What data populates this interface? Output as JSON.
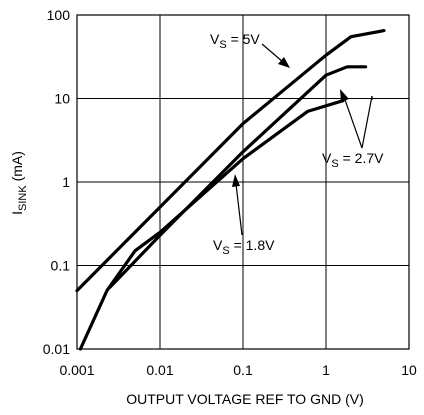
{
  "chart_data": {
    "type": "line",
    "title": "",
    "xlabel": "OUTPUT VOLTAGE REF TO GND (V)",
    "ylabel": {
      "main": "I",
      "sub": "SINK",
      "unit": " (mA)"
    },
    "xscale": "log",
    "yscale": "log",
    "xlim": [
      0.001,
      10
    ],
    "ylim": [
      0.01,
      100
    ],
    "grid": true,
    "x_ticks": [
      "0.001",
      "0.01",
      "0.1",
      "1",
      "10"
    ],
    "y_ticks": [
      "0.01",
      "0.1",
      "1",
      "10",
      "100"
    ],
    "series": [
      {
        "name": "VS = 5V",
        "label_main": "V",
        "label_sub": "S",
        "label_rest": " = 5V",
        "points": [
          [
            0.001,
            0.05
          ],
          [
            0.01,
            0.5
          ],
          [
            0.1,
            5
          ],
          [
            1,
            33
          ],
          [
            2,
            55
          ],
          [
            5,
            65
          ]
        ]
      },
      {
        "name": "VS = 2.7V",
        "label_main": "V",
        "label_sub": "S",
        "label_rest": " = 2.7V",
        "points": [
          [
            0.0025,
            0.055
          ],
          [
            0.01,
            0.23
          ],
          [
            0.1,
            2.3
          ],
          [
            1,
            19
          ],
          [
            1.8,
            24
          ],
          [
            3,
            24
          ]
        ]
      },
      {
        "name": "VS = 1.8V",
        "label_main": "V",
        "label_sub": "S",
        "label_rest": " = 1.8V",
        "points": [
          [
            0.0011,
            0.01
          ],
          [
            0.0023,
            0.05
          ],
          [
            0.005,
            0.15
          ],
          [
            0.01,
            0.25
          ],
          [
            0.1,
            1.9
          ],
          [
            0.6,
            7
          ],
          [
            1.6,
            9.4
          ]
        ]
      }
    ]
  }
}
